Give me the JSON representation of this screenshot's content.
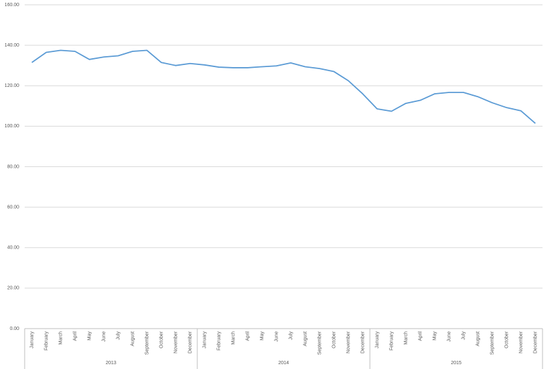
{
  "chart_data": {
    "type": "line",
    "categories": [
      "January",
      "February",
      "March",
      "April",
      "May",
      "June",
      "July",
      "August",
      "September",
      "October",
      "November",
      "December",
      "January",
      "February",
      "March",
      "April",
      "May",
      "June",
      "July",
      "August",
      "September",
      "October",
      "November",
      "December",
      "January",
      "February",
      "March",
      "April",
      "May",
      "June",
      "July",
      "August",
      "September",
      "October",
      "November",
      "December"
    ],
    "x_groups": [
      "2013",
      "2014",
      "2015"
    ],
    "series": [
      {
        "color": "#5b9bd5",
        "values": [
          131.5,
          136.5,
          137.5,
          137,
          133,
          134.2,
          134.8,
          137,
          137.5,
          131.5,
          130,
          131,
          130.3,
          129.2,
          128.9,
          128.9,
          129.4,
          129.8,
          131.3,
          129.4,
          128.5,
          127,
          122.5,
          116,
          108.6,
          107.4,
          111.3,
          112.8,
          116,
          116.7,
          116.7,
          114.6,
          111.6,
          109.2,
          107.6,
          101.4
        ]
      }
    ],
    "ylim": [
      0,
      160
    ],
    "yticks": [
      {
        "value": 0,
        "label": "0.00"
      },
      {
        "value": 20,
        "label": "20.00"
      },
      {
        "value": 40,
        "label": "40.00"
      },
      {
        "value": 60,
        "label": "60.00"
      },
      {
        "value": 80,
        "label": "80.00"
      },
      {
        "value": 100,
        "label": "100.00"
      },
      {
        "value": 120,
        "label": "120.00"
      },
      {
        "value": 140,
        "label": "140.00"
      },
      {
        "value": 160,
        "label": "160.00"
      }
    ],
    "grid": true
  }
}
